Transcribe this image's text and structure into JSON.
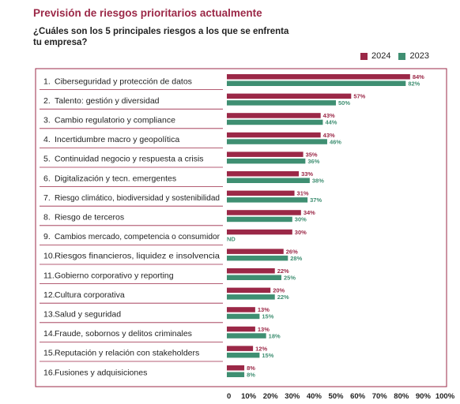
{
  "title": "Previsión de riesgos prioritarios actualmente",
  "subtitle": "¿Cuáles son los 5 principales riesgos a los que se enfrenta tu empresa?",
  "colors": {
    "s2024": "#9b2847",
    "s2023": "#3f8f72",
    "frame": "#9b2847",
    "text": "#222222"
  },
  "chart_data": {
    "type": "bar",
    "orientation": "horizontal",
    "title": "Previsión de riesgos prioritarios actualmente",
    "subtitle": "¿Cuáles son los 5 principales riesgos a los que se enfrenta tu empresa?",
    "categories": [
      {
        "num": "1.",
        "label": "Ciberseguridad y protección de datos"
      },
      {
        "num": "2.",
        "label": "Talento: gestión y diversidad"
      },
      {
        "num": "3.",
        "label": "Cambio regulatorio y compliance"
      },
      {
        "num": "4.",
        "label": "Incertidumbre macro y geopolítica"
      },
      {
        "num": "5.",
        "label": "Continuidad negocio y respuesta a crisis"
      },
      {
        "num": "6.",
        "label": "Digitalización y tecn. emergentes"
      },
      {
        "num": "7.",
        "label": "Riesgo climático, biodiversidad y sostenibilidad"
      },
      {
        "num": "8.",
        "label": "Riesgo de terceros"
      },
      {
        "num": "9.",
        "label": "Cambios mercado, competencia o consumidor"
      },
      {
        "num": "10.",
        "label": "Riesgos financieros, liquidez e insolvencia"
      },
      {
        "num": "11.",
        "label": "Gobierno corporativo y reporting"
      },
      {
        "num": "12.",
        "label": "Cultura corporativa"
      },
      {
        "num": "13.",
        "label": "Salud y seguridad"
      },
      {
        "num": "14.",
        "label": "Fraude, sobornos y delitos criminales"
      },
      {
        "num": "15.",
        "label": "Reputación y relación con stakeholders"
      },
      {
        "num": "16.",
        "label": "Fusiones y adquisiciones"
      }
    ],
    "series": [
      {
        "name": "2024",
        "values": [
          84,
          57,
          43,
          43,
          35,
          33,
          31,
          34,
          30,
          26,
          22,
          20,
          13,
          13,
          12,
          8
        ],
        "labels": [
          "84%",
          "57%",
          "43%",
          "43%",
          "35%",
          "33%",
          "31%",
          "34%",
          "30%",
          "26%",
          "22%",
          "20%",
          "13%",
          "13%",
          "12%",
          "8%"
        ]
      },
      {
        "name": "2023",
        "values": [
          82,
          50,
          44,
          46,
          36,
          38,
          37,
          30,
          null,
          28,
          25,
          22,
          15,
          18,
          15,
          8
        ],
        "labels": [
          "82%",
          "50%",
          "44%",
          "46%",
          "36%",
          "38%",
          "37%",
          "30%",
          "ND",
          "28%",
          "25%",
          "22%",
          "15%",
          "18%",
          "15%",
          "8%"
        ]
      }
    ],
    "xlim": [
      0,
      100
    ],
    "xticks": [
      "0",
      "10%",
      "20%",
      "30%",
      "40%",
      "50%",
      "60%",
      "70%",
      "80%",
      "90%",
      "100%"
    ],
    "grid": false,
    "legend_position": "top-right"
  }
}
